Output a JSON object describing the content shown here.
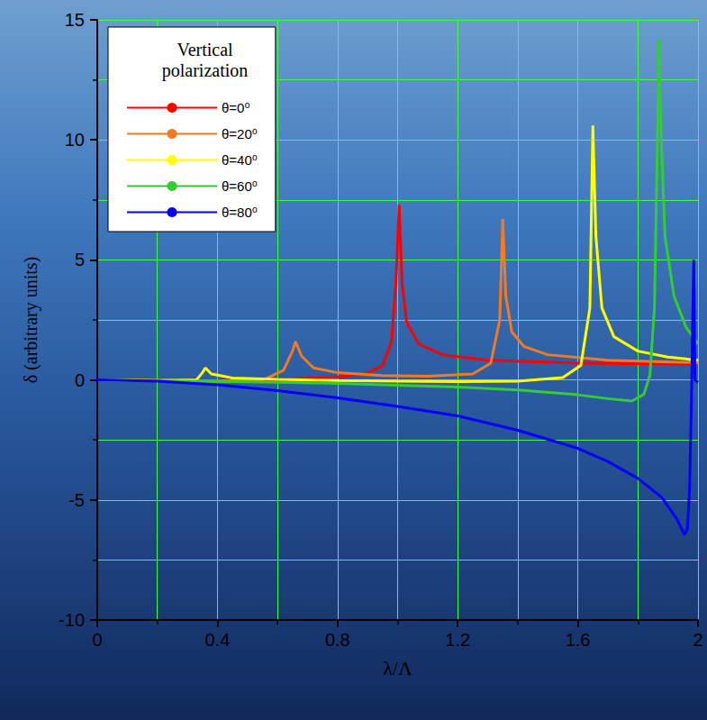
{
  "chart_data": {
    "type": "line",
    "x_label": "λ/Λ",
    "y_label": "δ (arbitrary units)",
    "legend_title": "Vertical polarization",
    "legend": "upper left",
    "grid": true,
    "xlim": [
      0,
      2
    ],
    "xticks": [
      0,
      0.4,
      0.8,
      1.2,
      1.6,
      2
    ],
    "ylim": [
      -10,
      15
    ],
    "yticks": [
      -10,
      -5,
      0,
      5,
      10,
      15
    ],
    "series": [
      {
        "name": "θ=0⁰",
        "color": "#ff0000",
        "x": [
          0,
          0.2,
          0.4,
          0.6,
          0.8,
          0.9,
          0.95,
          0.98,
          0.995,
          1.005,
          1.015,
          1.03,
          1.07,
          1.15,
          1.3,
          1.6,
          2.0
        ],
        "values": [
          0,
          -0.02,
          -0.03,
          0.02,
          0.12,
          0.28,
          0.6,
          1.6,
          4.2,
          7.3,
          4.0,
          2.4,
          1.5,
          1.05,
          0.82,
          0.7,
          0.66
        ]
      },
      {
        "name": "θ=20⁰",
        "color": "#f47a20",
        "x": [
          0,
          0.2,
          0.4,
          0.55,
          0.62,
          0.65,
          0.66,
          0.68,
          0.72,
          0.8,
          0.95,
          1.1,
          1.25,
          1.31,
          1.34,
          1.35,
          1.36,
          1.38,
          1.42,
          1.5,
          1.7,
          2.0
        ],
        "values": [
          0,
          -0.02,
          -0.04,
          -0.02,
          0.4,
          1.2,
          1.6,
          1.0,
          0.5,
          0.3,
          0.18,
          0.15,
          0.25,
          0.7,
          2.5,
          6.7,
          3.5,
          2.0,
          1.4,
          1.05,
          0.82,
          0.72
        ]
      },
      {
        "name": "θ=40⁰",
        "color": "#ffff00",
        "x": [
          0,
          0.2,
          0.33,
          0.35,
          0.36,
          0.38,
          0.45,
          0.6,
          0.8,
          1.0,
          1.2,
          1.4,
          1.55,
          1.61,
          1.64,
          1.65,
          1.66,
          1.68,
          1.72,
          1.8,
          1.9,
          2.0
        ],
        "values": [
          0,
          -0.02,
          0.0,
          0.3,
          0.5,
          0.25,
          0.08,
          0.02,
          -0.02,
          -0.05,
          -0.07,
          -0.05,
          0.1,
          0.6,
          3.0,
          10.6,
          6.0,
          3.0,
          1.8,
          1.2,
          0.95,
          0.82
        ]
      },
      {
        "name": "θ=60⁰",
        "color": "#33cc33",
        "x": [
          0,
          0.2,
          0.4,
          0.6,
          0.8,
          1.0,
          1.2,
          1.4,
          1.6,
          1.7,
          1.78,
          1.82,
          1.84,
          1.855,
          1.865,
          1.87,
          1.875,
          1.89,
          1.92,
          1.96,
          2.0
        ],
        "values": [
          0,
          -0.03,
          -0.07,
          -0.1,
          -0.15,
          -0.22,
          -0.3,
          -0.42,
          -0.62,
          -0.78,
          -0.88,
          -0.6,
          0.2,
          3.0,
          10.0,
          14.2,
          11.0,
          6.0,
          3.5,
          2.2,
          1.5
        ]
      },
      {
        "name": "θ=80⁰",
        "color": "#0000ff",
        "x": [
          0,
          0.2,
          0.4,
          0.6,
          0.8,
          1.0,
          1.2,
          1.4,
          1.6,
          1.7,
          1.8,
          1.88,
          1.93,
          1.955,
          1.965,
          1.972,
          1.978,
          1.983,
          1.986,
          1.99,
          2.0
        ],
        "values": [
          0,
          -0.05,
          -0.2,
          -0.45,
          -0.75,
          -1.1,
          -1.5,
          -2.1,
          -2.85,
          -3.4,
          -4.1,
          -4.9,
          -5.8,
          -6.45,
          -6.2,
          -4.5,
          -1.0,
          3.0,
          5.0,
          0.0,
          -0.1
        ]
      }
    ]
  }
}
